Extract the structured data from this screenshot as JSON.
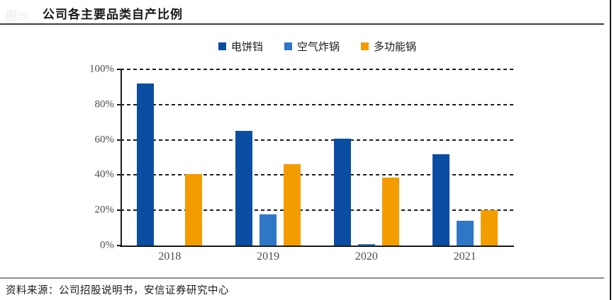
{
  "figure_label": "图39.",
  "header": {
    "title": "公司各主要品类自产比例"
  },
  "footer": {
    "source": "资料来源：公司招股说明书，安信证券研究中心"
  },
  "colors": {
    "series_1": "#0B4DA2",
    "series_2": "#2F76C7",
    "series_3": "#F39C00",
    "axis": "#1a1a1a",
    "tick_text": "#4d4d4d"
  },
  "chart_data": {
    "type": "bar",
    "title": "公司各主要品类自产比例",
    "categories": [
      "2018",
      "2019",
      "2020",
      "2021"
    ],
    "series": [
      {
        "name": "电饼铛",
        "color": "#0B4DA2",
        "values": [
          92,
          65,
          60.5,
          52
        ]
      },
      {
        "name": "空气炸锅",
        "color": "#2F76C7",
        "values": [
          0,
          17.5,
          1,
          14
        ]
      },
      {
        "name": "多功能锅",
        "color": "#F39C00",
        "values": [
          40.5,
          46,
          38.5,
          20
        ]
      }
    ],
    "xlabel": "",
    "ylabel": "",
    "ylim": [
      0,
      100
    ],
    "yticks": [
      {
        "label": "100%",
        "value": 100
      },
      {
        "label": "80%",
        "value": 80
      },
      {
        "label": "60%",
        "value": 60
      },
      {
        "label": "40%",
        "value": 40
      },
      {
        "label": "20%",
        "value": 20
      },
      {
        "label": "0%",
        "value": 0
      }
    ],
    "grid": "horizontal-dashed",
    "legend_position": "top-center"
  }
}
